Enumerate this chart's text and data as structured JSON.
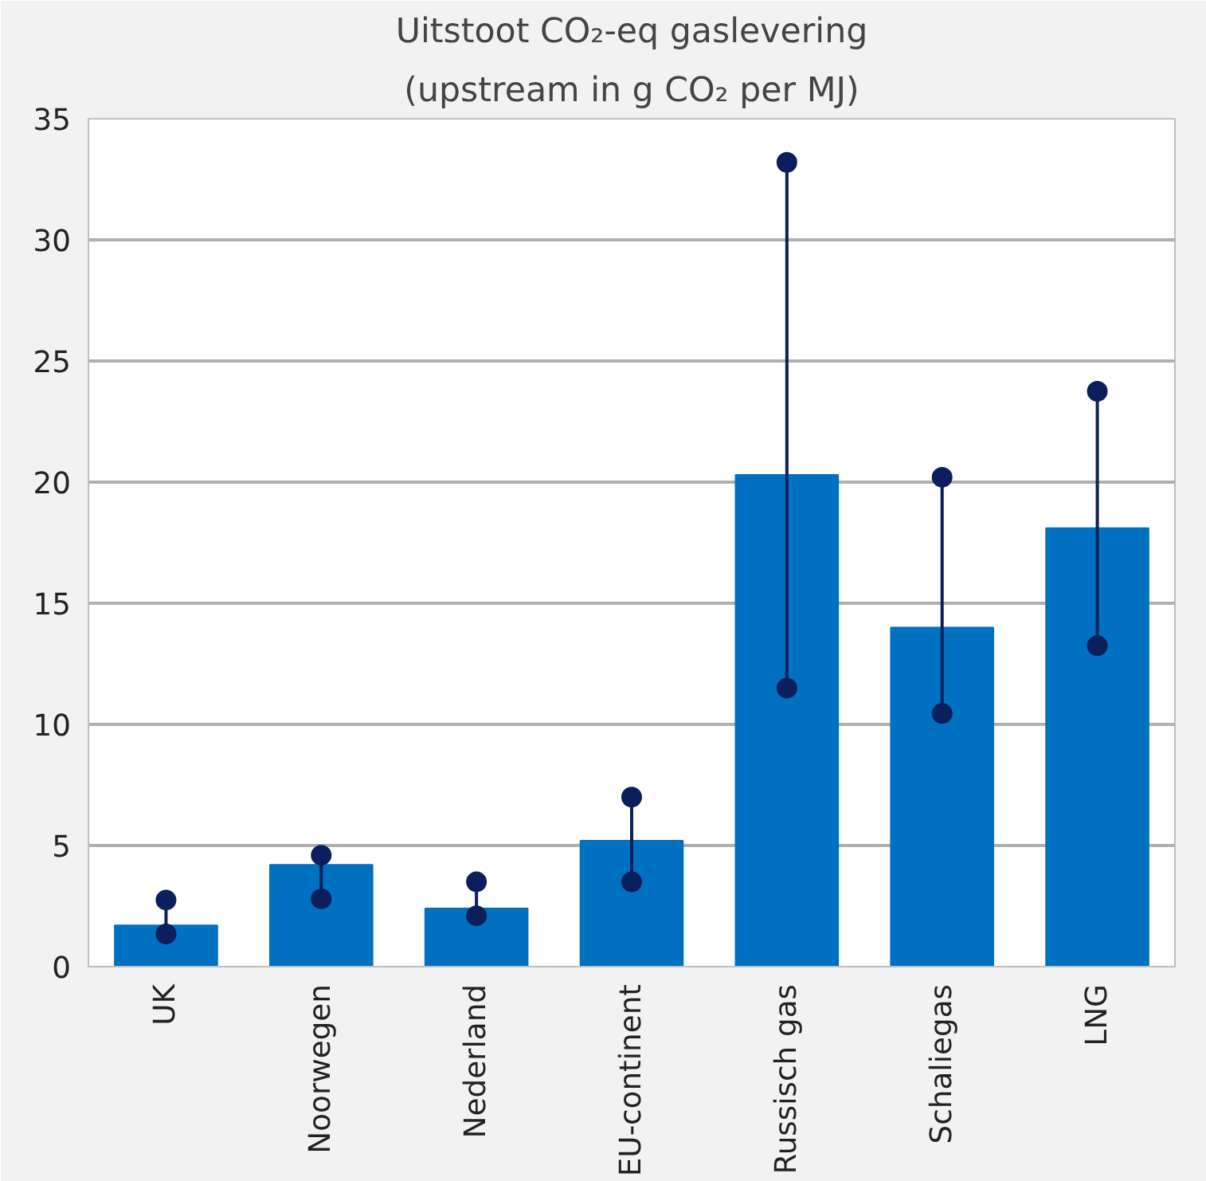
{
  "chart_data": {
    "type": "bar",
    "title": "Uitstoot CO₂-eq gaslevering",
    "subtitle": "(upstream in g CO₂ per MJ)",
    "categories": [
      "UK",
      "Noorwegen",
      "Nederland",
      "EU-continent",
      "Russisch gas",
      "Schaliegas",
      "LNG"
    ],
    "values": [
      1.7,
      4.2,
      2.4,
      5.2,
      20.3,
      14.0,
      18.1
    ],
    "color": "#0070c0",
    "series": [
      {
        "type": "line",
        "color": "#0a1f5c",
        "x": [
          "UK",
          "UK"
        ],
        "values": [
          1.35,
          2.75
        ]
      },
      {
        "type": "line",
        "color": "#0a1f5c",
        "x": [
          "Noorwegen",
          "Noorwegen"
        ],
        "values": [
          2.8,
          4.6
        ]
      },
      {
        "type": "line",
        "color": "#0a1f5c",
        "x": [
          "Nederland",
          "Nederland"
        ],
        "values": [
          2.1,
          3.5
        ]
      },
      {
        "type": "line",
        "color": "#0a1f5c",
        "x": [
          "EU-continent",
          "EU-continent"
        ],
        "values": [
          3.5,
          7.0
        ]
      },
      {
        "type": "line",
        "color": "#0a1f5c",
        "x": [
          "Russisch gas",
          "Russisch gas"
        ],
        "values": [
          11.5,
          33.2
        ]
      },
      {
        "type": "line",
        "color": "#0a1f5c",
        "x": [
          "Schaliegas",
          "Schaliegas"
        ],
        "values": [
          10.45,
          20.2
        ]
      },
      {
        "type": "line",
        "color": "#0a1f5c",
        "x": [
          "LNG",
          "LNG"
        ],
        "values": [
          13.25,
          23.75
        ]
      }
    ],
    "marker": "circle",
    "ylim": [
      0,
      35
    ],
    "yticks": [
      0,
      5,
      10,
      15,
      20,
      25,
      30,
      35
    ],
    "grid": "y"
  }
}
